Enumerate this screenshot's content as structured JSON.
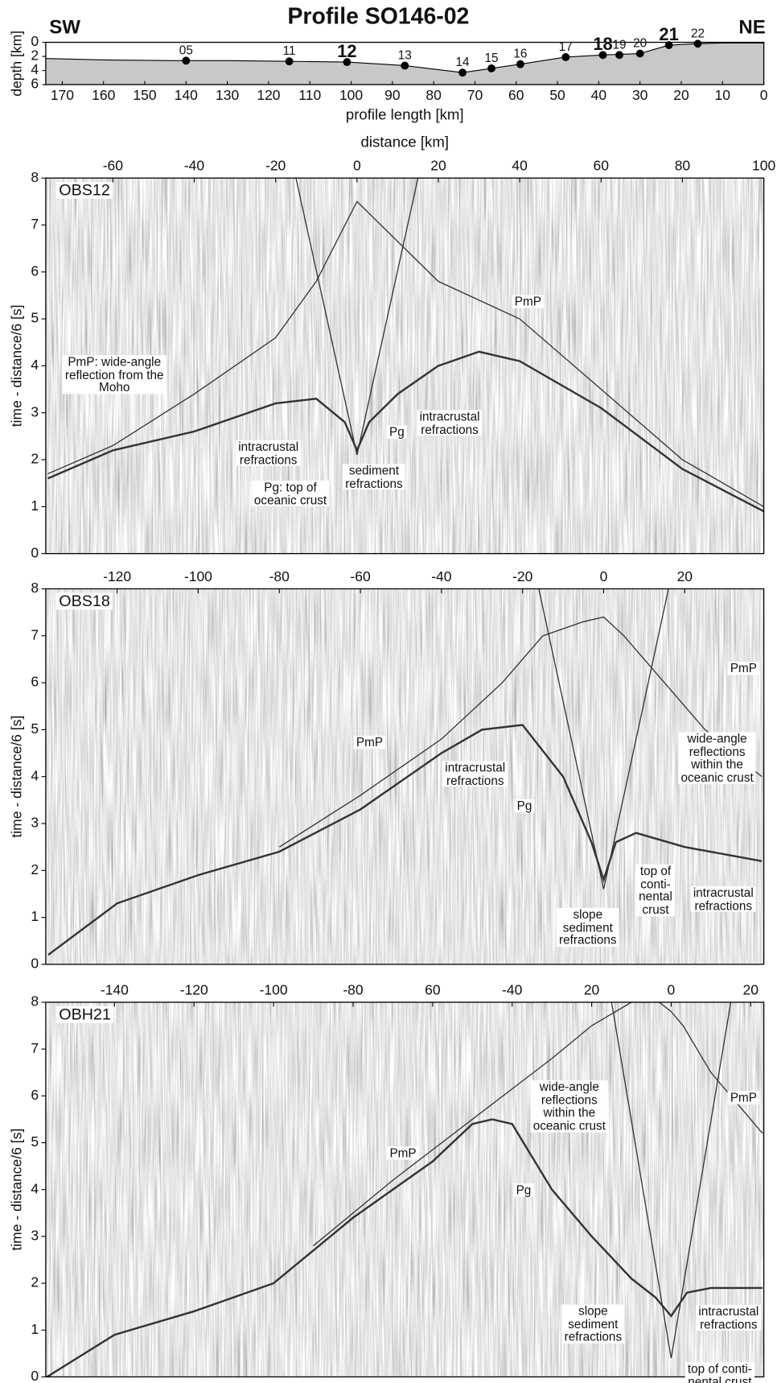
{
  "chart_data": [
    {
      "type": "profile",
      "title": "Profile SO146-02",
      "left_label": "SW",
      "right_label": "NE",
      "xlabel": "profile length [km]",
      "ylabel": "depth [km]",
      "xlim": [
        174,
        0
      ],
      "xticks": [
        170,
        160,
        150,
        140,
        130,
        120,
        110,
        100,
        90,
        80,
        70,
        60,
        50,
        40,
        30,
        20,
        10,
        0
      ],
      "ylim": [
        6,
        0
      ],
      "yticks": [
        0,
        2,
        4,
        6
      ],
      "x": [
        174,
        160,
        143,
        130,
        115,
        101,
        87,
        80,
        73,
        66,
        59,
        48,
        39,
        30,
        23,
        16,
        10,
        0
      ],
      "values": [
        2.3,
        2.5,
        2.6,
        2.6,
        2.7,
        2.8,
        3.3,
        3.8,
        4.3,
        3.7,
        3.1,
        2.1,
        1.8,
        1.6,
        0.4,
        0.2,
        0.1,
        0.1
      ],
      "color": "#c8c8c8",
      "stations": {
        "labels": [
          "05",
          "11",
          "12",
          "13",
          "14",
          "15",
          "16",
          "17",
          "18",
          "19",
          "20",
          "21",
          "22"
        ],
        "x": [
          140,
          115,
          101,
          87,
          73,
          66,
          59,
          48,
          39,
          35,
          30,
          23,
          16
        ],
        "values": [
          2.6,
          2.7,
          2.8,
          3.3,
          4.3,
          3.7,
          3.1,
          2.1,
          1.8,
          1.8,
          1.6,
          0.4,
          0.2
        ],
        "label_bold": [
          false,
          false,
          true,
          false,
          false,
          false,
          false,
          false,
          true,
          false,
          false,
          true,
          false
        ]
      }
    },
    {
      "type": "seismic",
      "label": "OBS12",
      "xlabel": "distance [km]",
      "ylabel": "time - distance/6 [s]",
      "xlim": [
        -76.5,
        100
      ],
      "xticks": [
        -60,
        -40,
        -20,
        0,
        20,
        40,
        60,
        80,
        100
      ],
      "ylim": [
        0,
        8
      ],
      "yticks": [
        0,
        1,
        2,
        3,
        4,
        5,
        6,
        7,
        8
      ],
      "color": "#333333",
      "curves": [
        {
          "x": [
            -76,
            -60,
            -40,
            -20,
            -10,
            -3,
            0,
            3,
            10,
            20,
            30,
            40,
            60,
            80,
            100
          ],
          "values": [
            1.6,
            2.2,
            2.6,
            3.2,
            3.3,
            2.8,
            2.2,
            2.8,
            3.4,
            4.0,
            4.3,
            4.1,
            3.1,
            1.8,
            0.9
          ]
        },
        {
          "x": [
            -76,
            -60,
            -40,
            -20,
            -10,
            0,
            20,
            40,
            60,
            80,
            100
          ],
          "values": [
            1.7,
            2.3,
            3.4,
            4.6,
            5.8,
            7.5,
            5.8,
            5.0,
            3.5,
            2.0,
            1.0
          ]
        },
        {
          "x": [
            -15,
            0,
            15
          ],
          "values": [
            8,
            2.1,
            8
          ]
        }
      ],
      "annotations": [
        "PmP",
        "PmP: wide-angle\nreflection from the\nMoho",
        "intracrustal\nrefractions",
        "Pg",
        "sediment\nrefractions",
        "Pg: top of\noceanic crust",
        "intracrustal\nrefractions"
      ]
    },
    {
      "type": "seismic",
      "label": "OBS18",
      "ylabel": "time - distance/6 [s]",
      "xlim": [
        -137.6,
        39.5
      ],
      "xticks": [
        -120,
        -100,
        -80,
        -60,
        -40,
        -20,
        0,
        20
      ],
      "ylim": [
        0,
        8
      ],
      "yticks": [
        0,
        1,
        2,
        3,
        4,
        5,
        6,
        7,
        8
      ],
      "color": "#333333",
      "curves": [
        {
          "x": [
            -137,
            -120,
            -100,
            -80,
            -60,
            -40,
            -30,
            -20,
            -10,
            -3,
            0,
            3,
            8,
            20,
            39
          ],
          "values": [
            0.2,
            1.3,
            1.9,
            2.4,
            3.3,
            4.5,
            5.0,
            5.1,
            4.0,
            2.6,
            1.8,
            2.6,
            2.8,
            2.5,
            2.2
          ]
        },
        {
          "x": [
            -80,
            -60,
            -40,
            -25,
            -15,
            -5,
            0,
            5,
            15,
            25,
            39
          ],
          "values": [
            2.5,
            3.6,
            4.8,
            6.0,
            7.0,
            7.3,
            7.4,
            7.0,
            6.0,
            5.0,
            4.0
          ]
        },
        {
          "x": [
            -16,
            0,
            16
          ],
          "values": [
            8,
            1.6,
            8
          ]
        }
      ],
      "annotations": [
        "PmP",
        "PmP",
        "intracrustal\nrefractions",
        "Pg",
        "slope\nsediment\nrefractions",
        "top of\nconti-\nnental\ncrust",
        "wide-angle\nreflections\nwithin the\noceanic crust",
        "intracrustal\nrefractions"
      ]
    },
    {
      "type": "seismic",
      "label": "OBH21",
      "ylabel": "time - distance/6 [s]",
      "xlim": [
        -157.3,
        23.3
      ],
      "xticks": [
        -140,
        -120,
        -100,
        -80,
        {
          "value": -60,
          "label": "60"
        },
        -40,
        {
          "value": -20,
          "label": "20"
        },
        0,
        20
      ],
      "ylim": [
        0,
        8
      ],
      "yticks": [
        0,
        1,
        2,
        3,
        4,
        5,
        6,
        7,
        8
      ],
      "color": "#333333",
      "curves": [
        {
          "x": [
            -157,
            -140,
            -120,
            -100,
            -80,
            -60,
            -50,
            -45,
            -40,
            -30,
            -20,
            -10,
            -4,
            0,
            4,
            10,
            23
          ],
          "values": [
            0,
            0.9,
            1.4,
            2.0,
            3.4,
            4.6,
            5.4,
            5.5,
            5.4,
            4.0,
            3.0,
            2.1,
            1.7,
            1.3,
            1.8,
            1.9,
            1.9
          ]
        },
        {
          "x": [
            -90,
            -70,
            -50,
            -30,
            -20,
            -10,
            -3,
            0,
            3,
            10,
            23
          ],
          "values": [
            2.8,
            4.2,
            5.5,
            6.8,
            7.5,
            8.0,
            8.0,
            7.8,
            7.5,
            6.5,
            5.2
          ]
        },
        {
          "x": [
            -15,
            0,
            15
          ],
          "values": [
            8,
            0.4,
            8
          ]
        }
      ],
      "annotations": [
        "PmP",
        "PmP",
        "wide-angle\nreflections\nwithin the\noceanic crust",
        "Pg",
        "slope\nsediment\nrefractions",
        "intracrustal\nrefractions",
        "top of conti-\nnental crust"
      ]
    }
  ]
}
